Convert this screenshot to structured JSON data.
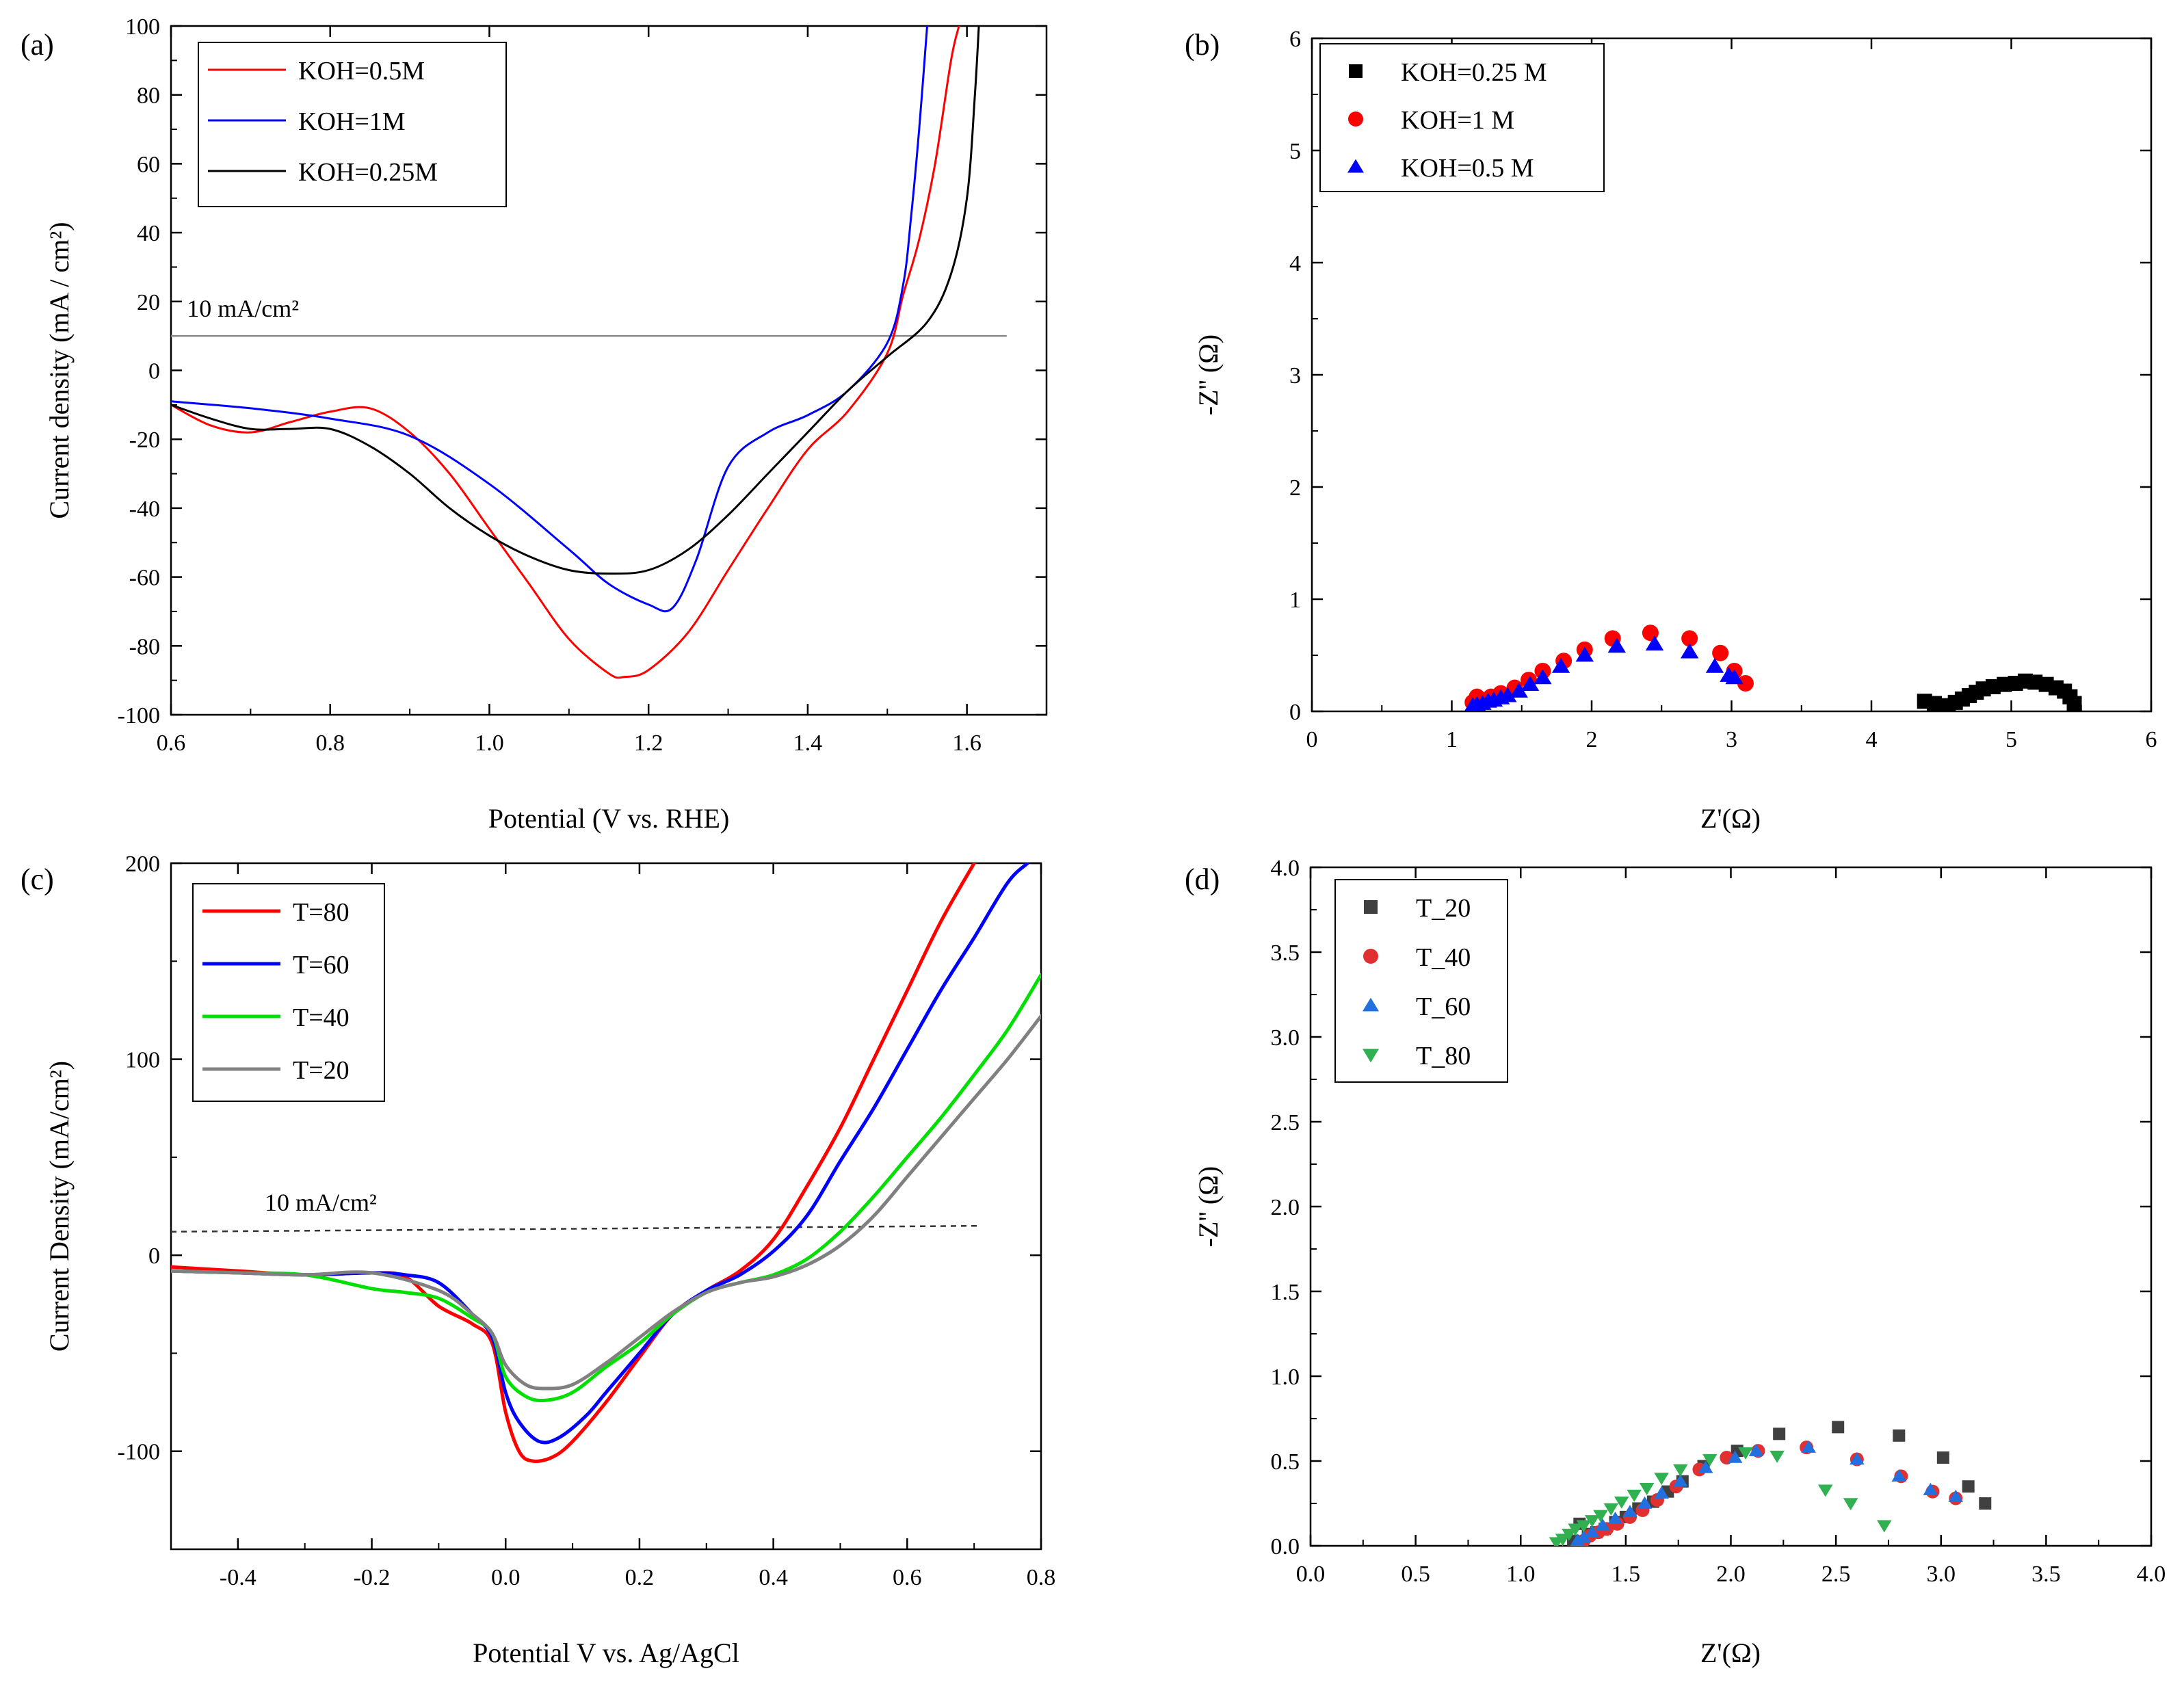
{
  "chart_data": [
    {
      "panel": "(a)",
      "type": "line",
      "xlabel": "Potential (V vs. RHE)",
      "ylabel": "Current density (mA / cm²)",
      "xlim": [
        0.6,
        1.7
      ],
      "ylim": [
        -100,
        100
      ],
      "xticks": [
        0.6,
        0.8,
        1.0,
        1.2,
        1.4,
        1.6
      ],
      "xtick_labels": [
        "0.6",
        "0.8",
        "1.0",
        "1.2",
        "1.4",
        "1.6"
      ],
      "yticks": [
        -100,
        -80,
        -60,
        -40,
        -20,
        0,
        20,
        40,
        60,
        80,
        100
      ],
      "ytick_labels": [
        "-100",
        "-80",
        "-60",
        "-40",
        "-20",
        "0",
        "20",
        "40",
        "60",
        "80",
        "100"
      ],
      "legend": "top-left",
      "annotations": [
        {
          "text": "10 mA/cm²",
          "line_y": 10,
          "x_from": 0.6,
          "x_to": 1.65,
          "text_x": 0.62,
          "text_y": 14
        }
      ],
      "series": [
        {
          "name": "KOH=0.5M",
          "color": "#ff0000",
          "width": 3,
          "x": [
            0.6,
            0.65,
            0.7,
            0.75,
            0.8,
            0.85,
            0.9,
            0.95,
            1.0,
            1.05,
            1.1,
            1.15,
            1.17,
            1.2,
            1.25,
            1.3,
            1.35,
            1.4,
            1.45,
            1.5,
            1.52,
            1.54,
            1.56,
            1.58,
            1.59
          ],
          "y": [
            -10,
            -16,
            -18,
            -15,
            -12,
            -11,
            -18,
            -30,
            -46,
            -62,
            -78,
            -88,
            -89,
            -87,
            -76,
            -58,
            -40,
            -23,
            -12,
            5,
            22,
            38,
            60,
            90,
            100
          ]
        },
        {
          "name": "KOH=1M",
          "color": "#0000ff",
          "width": 3,
          "x": [
            0.6,
            0.7,
            0.8,
            0.9,
            1.0,
            1.1,
            1.15,
            1.2,
            1.23,
            1.26,
            1.3,
            1.35,
            1.4,
            1.45,
            1.5,
            1.52,
            1.53,
            1.54,
            1.55
          ],
          "y": [
            -9,
            -11,
            -14,
            -19,
            -33,
            -52,
            -62,
            -68,
            -69,
            -55,
            -28,
            -18,
            -13,
            -6,
            8,
            25,
            45,
            70,
            100
          ]
        },
        {
          "name": "KOH=0.25M",
          "color": "#000000",
          "width": 3,
          "x": [
            0.6,
            0.65,
            0.7,
            0.75,
            0.8,
            0.85,
            0.9,
            0.95,
            1.0,
            1.05,
            1.1,
            1.15,
            1.2,
            1.25,
            1.3,
            1.35,
            1.4,
            1.45,
            1.5,
            1.55,
            1.58,
            1.6,
            1.61,
            1.615
          ],
          "y": [
            -10,
            -14,
            -17,
            -17,
            -17,
            -22,
            -30,
            -40,
            -48,
            -54,
            -58,
            -59,
            -58,
            -52,
            -42,
            -30,
            -18,
            -6,
            4,
            14,
            28,
            50,
            80,
            100
          ]
        }
      ]
    },
    {
      "panel": "(b)",
      "type": "scatter",
      "xlabel": "Z'(Ω)",
      "ylabel": "-Z'' (Ω)",
      "xlim": [
        0,
        6
      ],
      "ylim": [
        0,
        6
      ],
      "xticks": [
        0,
        1,
        2,
        3,
        4,
        5,
        6
      ],
      "xtick_labels": [
        "0",
        "1",
        "2",
        "3",
        "4",
        "5",
        "6"
      ],
      "yticks": [
        0,
        1,
        2,
        3,
        4,
        5,
        6
      ],
      "ytick_labels": [
        "0",
        "1",
        "2",
        "3",
        "4",
        "5",
        "6"
      ],
      "legend": "top-left",
      "series": [
        {
          "name": "KOH=0.25 M",
          "marker": "square",
          "color": "#000000",
          "x": [
            4.38,
            4.45,
            4.5,
            4.55,
            4.6,
            4.65,
            4.7,
            4.75,
            4.8,
            4.87,
            4.95,
            5.03,
            5.1,
            5.17,
            5.25,
            5.32,
            5.38,
            5.42,
            5.45
          ],
          "y": [
            0.09,
            0.07,
            0.05,
            0.05,
            0.08,
            0.11,
            0.14,
            0.17,
            0.2,
            0.22,
            0.24,
            0.25,
            0.27,
            0.26,
            0.24,
            0.21,
            0.18,
            0.13,
            0.07
          ]
        },
        {
          "name": "KOH=1 M",
          "marker": "circle",
          "color": "#ff0000",
          "x": [
            1.15,
            1.18,
            1.22,
            1.28,
            1.35,
            1.45,
            1.55,
            1.65,
            1.8,
            1.95,
            2.15,
            2.42,
            2.7,
            2.92,
            3.02,
            3.1
          ],
          "y": [
            0.08,
            0.13,
            0.1,
            0.13,
            0.16,
            0.21,
            0.28,
            0.36,
            0.45,
            0.55,
            0.65,
            0.7,
            0.65,
            0.52,
            0.36,
            0.25
          ]
        },
        {
          "name": "KOH=0.5 M",
          "marker": "triangle",
          "color": "#0000ff",
          "x": [
            1.15,
            1.18,
            1.22,
            1.26,
            1.3,
            1.35,
            1.4,
            1.48,
            1.56,
            1.65,
            1.78,
            1.95,
            2.18,
            2.45,
            2.7,
            2.88,
            2.98,
            3.02
          ],
          "y": [
            0.05,
            0.06,
            0.07,
            0.09,
            0.1,
            0.12,
            0.14,
            0.18,
            0.24,
            0.3,
            0.4,
            0.5,
            0.58,
            0.6,
            0.53,
            0.4,
            0.32,
            0.3
          ]
        }
      ]
    },
    {
      "panel": "(c)",
      "type": "line",
      "xlabel": "Potential V vs. Ag/AgCl",
      "ylabel": "Current Density (mA/cm²)",
      "xlim": [
        -0.5,
        0.8
      ],
      "ylim": [
        -150,
        200
      ],
      "xticks": [
        -0.4,
        -0.2,
        0.0,
        0.2,
        0.4,
        0.6,
        0.8
      ],
      "xtick_labels": [
        "-0.4",
        "-0.2",
        "0.0",
        "0.2",
        "0.4",
        "0.6",
        "0.8"
      ],
      "yticks": [
        -100,
        0,
        100,
        200
      ],
      "ytick_labels": [
        "-100",
        "0",
        "100",
        "200"
      ],
      "legend": "top-left",
      "annotations": [
        {
          "text": "10 mA/cm²",
          "line_y": [
            12,
            15
          ],
          "x_from": -0.5,
          "x_to": 0.71,
          "text_x": -0.36,
          "text_y": 20,
          "dashed": true
        }
      ],
      "series": [
        {
          "name": "T=80",
          "color": "#ff0000",
          "width": 5,
          "x": [
            -0.5,
            -0.4,
            -0.3,
            -0.2,
            -0.15,
            -0.1,
            -0.05,
            -0.02,
            0.0,
            0.02,
            0.04,
            0.07,
            0.1,
            0.15,
            0.2,
            0.25,
            0.3,
            0.35,
            0.4,
            0.45,
            0.5,
            0.55,
            0.6,
            0.65,
            0.7
          ],
          "y": [
            -6,
            -8,
            -10,
            -9,
            -11,
            -26,
            -35,
            -45,
            -80,
            -100,
            -105,
            -103,
            -95,
            -75,
            -52,
            -30,
            -18,
            -8,
            8,
            35,
            65,
            100,
            135,
            170,
            200
          ]
        },
        {
          "name": "T=60",
          "color": "#0000ff",
          "width": 5,
          "x": [
            -0.5,
            -0.4,
            -0.3,
            -0.2,
            -0.15,
            -0.1,
            -0.05,
            -0.02,
            0.0,
            0.02,
            0.05,
            0.08,
            0.12,
            0.15,
            0.2,
            0.25,
            0.3,
            0.35,
            0.4,
            0.45,
            0.5,
            0.55,
            0.6,
            0.65,
            0.7,
            0.75,
            0.78
          ],
          "y": [
            -8,
            -9,
            -10,
            -9,
            -10,
            -14,
            -30,
            -42,
            -70,
            -85,
            -95,
            -93,
            -82,
            -70,
            -50,
            -30,
            -18,
            -10,
            2,
            20,
            48,
            75,
            105,
            135,
            162,
            190,
            200
          ]
        },
        {
          "name": "T=40",
          "color": "#00e000",
          "width": 5,
          "x": [
            -0.5,
            -0.4,
            -0.3,
            -0.2,
            -0.15,
            -0.1,
            -0.05,
            -0.02,
            0.0,
            0.03,
            0.06,
            0.1,
            0.15,
            0.2,
            0.25,
            0.3,
            0.35,
            0.4,
            0.45,
            0.5,
            0.55,
            0.6,
            0.65,
            0.7,
            0.75,
            0.8
          ],
          "y": [
            -8,
            -9,
            -10,
            -17,
            -19,
            -22,
            -32,
            -40,
            -62,
            -72,
            -74,
            -70,
            -57,
            -45,
            -30,
            -19,
            -14,
            -10,
            -2,
            12,
            30,
            50,
            70,
            92,
            115,
            143
          ]
        },
        {
          "name": "T=20",
          "color": "#808080",
          "width": 5,
          "x": [
            -0.5,
            -0.4,
            -0.3,
            -0.2,
            -0.1,
            -0.05,
            -0.02,
            0.0,
            0.03,
            0.06,
            0.1,
            0.15,
            0.2,
            0.25,
            0.3,
            0.35,
            0.4,
            0.45,
            0.5,
            0.55,
            0.6,
            0.65,
            0.7,
            0.75,
            0.8
          ],
          "y": [
            -8,
            -9,
            -10,
            -9,
            -18,
            -30,
            -40,
            -56,
            -66,
            -68,
            -66,
            -55,
            -42,
            -29,
            -19,
            -14,
            -11,
            -5,
            5,
            20,
            40,
            60,
            80,
            100,
            122
          ]
        }
      ]
    },
    {
      "panel": "(d)",
      "type": "scatter",
      "xlabel": "Z'(Ω)",
      "ylabel": "-Z'' (Ω)",
      "xlim": [
        0,
        4
      ],
      "ylim": [
        0,
        4
      ],
      "xticks": [
        0,
        0.5,
        1.0,
        1.5,
        2.0,
        2.5,
        3.0,
        3.5,
        4.0
      ],
      "xtick_labels": [
        "0.0",
        "0.5",
        "1.0",
        "1.5",
        "2.0",
        "2.5",
        "3.0",
        "3.5",
        "4.0"
      ],
      "yticks": [
        0,
        0.5,
        1.0,
        1.5,
        2.0,
        2.5,
        3.0,
        3.5,
        4.0
      ],
      "ytick_labels": [
        "0.0",
        "0.5",
        "1.0",
        "1.5",
        "2.0",
        "2.5",
        "3.0",
        "3.5",
        "4.0"
      ],
      "legend": "top-left",
      "series": [
        {
          "name": "T_20",
          "marker": "square",
          "color": "#404040",
          "x": [
            1.25,
            1.28,
            1.32,
            1.36,
            1.4,
            1.45,
            1.5,
            1.56,
            1.63,
            1.7,
            1.77,
            1.87,
            2.03,
            2.23,
            2.51,
            2.8,
            3.01,
            3.13,
            3.21
          ],
          "y": [
            0.03,
            0.13,
            0.07,
            0.08,
            0.1,
            0.14,
            0.17,
            0.22,
            0.26,
            0.32,
            0.38,
            0.47,
            0.56,
            0.66,
            0.7,
            0.65,
            0.52,
            0.35,
            0.25
          ]
        },
        {
          "name": "T_40",
          "marker": "circle",
          "color": "#e03030",
          "x": [
            1.3,
            1.33,
            1.37,
            1.41,
            1.46,
            1.52,
            1.58,
            1.65,
            1.74,
            1.85,
            1.98,
            2.13,
            2.36,
            2.6,
            2.81,
            2.96,
            3.07
          ],
          "y": [
            0.03,
            0.06,
            0.08,
            0.1,
            0.13,
            0.17,
            0.21,
            0.27,
            0.35,
            0.45,
            0.52,
            0.56,
            0.58,
            0.51,
            0.41,
            0.32,
            0.28
          ]
        },
        {
          "name": "T_60",
          "marker": "triangle",
          "color": "#2070e0",
          "x": [
            1.27,
            1.3,
            1.34,
            1.39,
            1.45,
            1.52,
            1.59,
            1.67,
            1.76,
            1.88,
            2.02,
            2.12,
            2.37,
            2.6,
            2.8,
            2.95,
            3.07
          ],
          "y": [
            0.03,
            0.05,
            0.08,
            0.12,
            0.16,
            0.2,
            0.25,
            0.31,
            0.38,
            0.46,
            0.52,
            0.56,
            0.58,
            0.51,
            0.41,
            0.33,
            0.29
          ]
        },
        {
          "name": "T_80",
          "marker": "triangle-down",
          "color": "#30b050",
          "x": [
            1.17,
            1.2,
            1.23,
            1.26,
            1.3,
            1.34,
            1.38,
            1.43,
            1.48,
            1.54,
            1.6,
            1.67,
            1.76,
            1.9,
            2.07,
            2.22,
            2.45,
            2.57,
            2.73
          ],
          "y": [
            0.02,
            0.04,
            0.07,
            0.1,
            0.12,
            0.15,
            0.18,
            0.22,
            0.26,
            0.3,
            0.34,
            0.4,
            0.45,
            0.51,
            0.55,
            0.53,
            0.33,
            0.25,
            0.12
          ]
        }
      ]
    }
  ]
}
